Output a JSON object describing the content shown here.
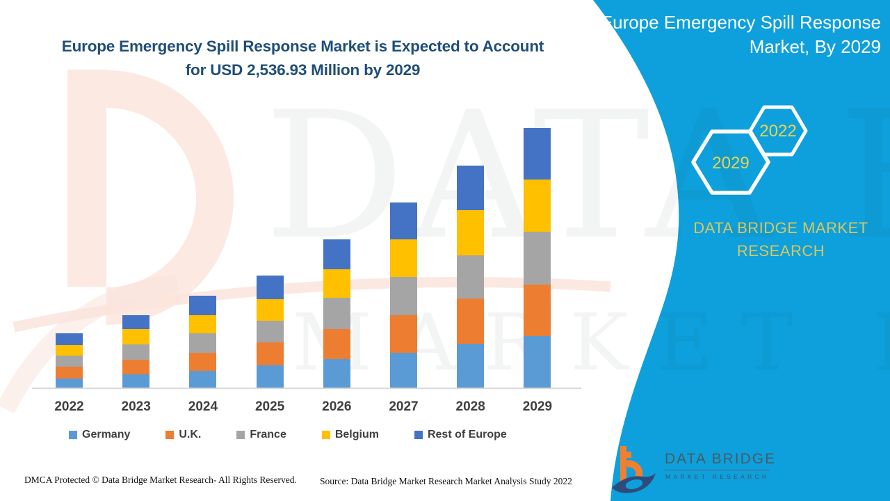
{
  "header": {
    "title_line1": "Europe Emergency Spill Response Market is Expected to Account",
    "title_line2": "for USD 2,536.93 Million by 2029"
  },
  "side_panel": {
    "title_line1": "Europe Emergency Spill Response",
    "title_line2": "Market, By 2029",
    "hexagon_labels": [
      "2029",
      "2022"
    ],
    "brand_line1": "DATA BRIDGE MARKET",
    "brand_line2": "RESEARCH"
  },
  "watermark": {
    "line1": "DATA BRIDGE",
    "line2": "MARKET RESEARCH"
  },
  "chart_data": {
    "type": "bar",
    "stacked": true,
    "title": "Europe Emergency Spill Response Market is Expected to Account for USD 2,536.93 Million by 2029",
    "unit": "USD Million",
    "categories": [
      "2022",
      "2023",
      "2024",
      "2025",
      "2026",
      "2027",
      "2028",
      "2029"
    ],
    "series": [
      {
        "name": "Germany",
        "color": "#5B9BD5",
        "values": [
          95,
          136,
          170,
          224,
          285,
          346,
          434,
          509
        ]
      },
      {
        "name": "U.K.",
        "color": "#ED7D31",
        "values": [
          115,
          142,
          176,
          224,
          292,
          366,
          441,
          502
        ]
      },
      {
        "name": "France",
        "color": "#A5A5A5",
        "values": [
          109,
          149,
          190,
          210,
          305,
          373,
          421,
          516
        ]
      },
      {
        "name": "Belgium",
        "color": "#FFC000",
        "values": [
          102,
          149,
          176,
          210,
          278,
          366,
          441,
          509
        ]
      },
      {
        "name": "Rest of Europe",
        "color": "#4472C4",
        "values": [
          115,
          136,
          190,
          231,
          292,
          360,
          434,
          501
        ]
      }
    ],
    "totals_estimated": [
      536,
      712,
      902,
      1099,
      1452,
      1811,
      2171,
      2537
    ],
    "callout_total_2029": 2536.93,
    "axis": {
      "x_visible": true,
      "y_visible": false,
      "gridlines": false
    },
    "legend_position": "bottom"
  },
  "footer": {
    "dmca": "DMCA Protected © Data Bridge Market Research- All Rights Reserved.",
    "source": "Source: Data Bridge Market Research Market Analysis Study 2022"
  },
  "logo": {
    "name": "DATA BRIDGE",
    "subtitle": "MARKET RESEARCH"
  },
  "colors": {
    "accent_teal": "#0DA0DC",
    "title_navy": "#1F4E79",
    "brand_yellow": "#D9C75E",
    "hex_label_yellow": "#E8D44E",
    "axis_line": "#D9D9D9"
  }
}
